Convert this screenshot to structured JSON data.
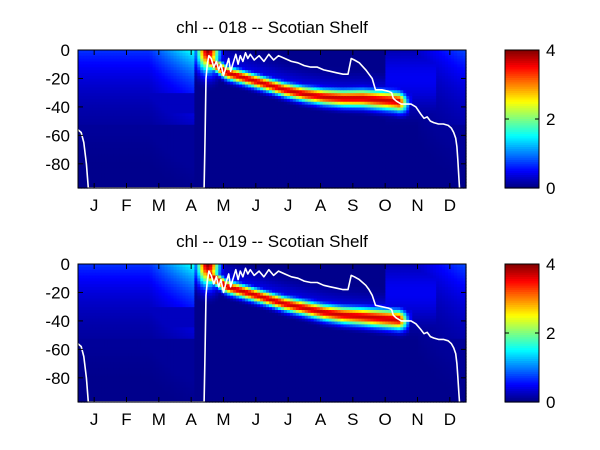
{
  "chart_data": [
    {
      "type": "heatmap",
      "title": "chl -- 018 -- Scotian Shelf",
      "xlabel": "",
      "ylabel": "",
      "xlim": [
        0,
        12
      ],
      "ylim": [
        -97,
        0
      ],
      "month_labels": [
        "J",
        "F",
        "M",
        "A",
        "M",
        "J",
        "J",
        "A",
        "S",
        "O",
        "N",
        "D"
      ],
      "y_ticks": [
        0,
        -20,
        -40,
        -60,
        -80
      ],
      "y_tick_labels": [
        "0",
        "-20",
        "-40",
        "-60",
        "-80"
      ],
      "colorbar": {
        "range": [
          0,
          4
        ],
        "ticks": [
          0,
          2,
          4
        ],
        "tick_labels": [
          "0",
          "2",
          "4"
        ],
        "colormap": "jet"
      },
      "subsurface_max": [
        [
          3.6,
          3
        ],
        [
          4.1,
          -8
        ],
        [
          4.6,
          -16
        ],
        [
          5.2,
          -20
        ],
        [
          5.8,
          -24
        ],
        [
          6.4,
          -28
        ],
        [
          7.0,
          -31
        ],
        [
          7.6,
          -33
        ],
        [
          8.2,
          -34
        ],
        [
          8.8,
          -34
        ],
        [
          9.3,
          -35
        ],
        [
          9.8,
          -36
        ],
        [
          10.3,
          -38
        ]
      ],
      "mixed_layer_depth": [
        [
          0.0,
          -56
        ],
        [
          0.1,
          -58
        ],
        [
          0.18,
          -65
        ],
        [
          0.26,
          -80
        ],
        [
          0.32,
          -97
        ],
        [
          3.9,
          -97
        ],
        [
          3.93,
          -60
        ],
        [
          3.96,
          -20
        ],
        [
          4.0,
          -10
        ],
        [
          4.05,
          -4
        ],
        [
          4.12,
          -6
        ],
        [
          4.2,
          -12
        ],
        [
          4.28,
          -8
        ],
        [
          4.35,
          -14
        ],
        [
          4.42,
          -10
        ],
        [
          4.5,
          -18
        ],
        [
          4.58,
          -12
        ],
        [
          4.66,
          -6
        ],
        [
          4.72,
          -15
        ],
        [
          4.8,
          -9
        ],
        [
          4.88,
          -3
        ],
        [
          4.95,
          -10
        ],
        [
          5.02,
          -4
        ],
        [
          5.1,
          -8
        ],
        [
          5.18,
          -2
        ],
        [
          5.25,
          -6
        ],
        [
          5.33,
          -3
        ],
        [
          5.45,
          -7
        ],
        [
          5.6,
          -4
        ],
        [
          5.75,
          -8
        ],
        [
          5.9,
          -3
        ],
        [
          6.05,
          -7
        ],
        [
          6.2,
          -4
        ],
        [
          6.4,
          -6
        ],
        [
          6.6,
          -8
        ],
        [
          6.8,
          -9
        ],
        [
          7.0,
          -11
        ],
        [
          7.2,
          -12
        ],
        [
          7.4,
          -12
        ],
        [
          7.6,
          -14
        ],
        [
          7.8,
          -15
        ],
        [
          8.0,
          -16
        ],
        [
          8.2,
          -17
        ],
        [
          8.35,
          -17
        ],
        [
          8.45,
          -6
        ],
        [
          8.55,
          -7
        ],
        [
          8.7,
          -9
        ],
        [
          8.9,
          -14
        ],
        [
          9.0,
          -17
        ],
        [
          9.1,
          -20
        ],
        [
          9.2,
          -28
        ],
        [
          9.4,
          -28
        ],
        [
          9.6,
          -29
        ],
        [
          9.7,
          -30
        ],
        [
          9.75,
          -34
        ],
        [
          9.85,
          -36
        ],
        [
          10.0,
          -38
        ],
        [
          10.3,
          -38
        ],
        [
          10.45,
          -40
        ],
        [
          10.6,
          -45
        ],
        [
          10.7,
          -48
        ],
        [
          10.8,
          -47
        ],
        [
          10.9,
          -50
        ],
        [
          11.0,
          -51
        ],
        [
          11.15,
          -52
        ],
        [
          11.3,
          -52
        ],
        [
          11.45,
          -53
        ],
        [
          11.55,
          -55
        ],
        [
          11.62,
          -58
        ],
        [
          11.68,
          -62
        ],
        [
          11.72,
          -68
        ],
        [
          11.75,
          -78
        ],
        [
          11.78,
          -90
        ],
        [
          11.8,
          -97
        ]
      ]
    },
    {
      "type": "heatmap",
      "title": "chl -- 019 -- Scotian Shelf",
      "xlabel": "",
      "ylabel": "",
      "xlim": [
        0,
        12
      ],
      "ylim": [
        -97,
        0
      ],
      "month_labels": [
        "J",
        "F",
        "M",
        "A",
        "M",
        "J",
        "J",
        "A",
        "S",
        "O",
        "N",
        "D"
      ],
      "y_ticks": [
        0,
        -20,
        -40,
        -60,
        -80
      ],
      "y_tick_labels": [
        "0",
        "-20",
        "-40",
        "-60",
        "-80"
      ],
      "colorbar": {
        "range": [
          0,
          4
        ],
        "ticks": [
          0,
          2,
          4
        ],
        "tick_labels": [
          "0",
          "2",
          "4"
        ],
        "colormap": "jet"
      },
      "subsurface_max": [
        [
          3.6,
          3
        ],
        [
          4.1,
          -8
        ],
        [
          4.6,
          -16
        ],
        [
          5.2,
          -20
        ],
        [
          5.8,
          -24
        ],
        [
          6.4,
          -28
        ],
        [
          7.0,
          -31
        ],
        [
          7.6,
          -34
        ],
        [
          8.2,
          -36
        ],
        [
          8.8,
          -37
        ],
        [
          9.3,
          -38
        ],
        [
          9.8,
          -39
        ],
        [
          10.3,
          -40
        ]
      ],
      "mixed_layer_depth": [
        [
          0.0,
          -56
        ],
        [
          0.1,
          -58
        ],
        [
          0.18,
          -65
        ],
        [
          0.26,
          -80
        ],
        [
          0.32,
          -97
        ],
        [
          3.9,
          -97
        ],
        [
          3.93,
          -60
        ],
        [
          3.96,
          -22
        ],
        [
          4.0,
          -12
        ],
        [
          4.05,
          -5
        ],
        [
          4.12,
          -8
        ],
        [
          4.2,
          -14
        ],
        [
          4.28,
          -9
        ],
        [
          4.35,
          -16
        ],
        [
          4.42,
          -11
        ],
        [
          4.5,
          -20
        ],
        [
          4.58,
          -13
        ],
        [
          4.66,
          -7
        ],
        [
          4.72,
          -16
        ],
        [
          4.8,
          -10
        ],
        [
          4.88,
          -4
        ],
        [
          4.95,
          -11
        ],
        [
          5.02,
          -5
        ],
        [
          5.1,
          -9
        ],
        [
          5.18,
          -3
        ],
        [
          5.25,
          -7
        ],
        [
          5.33,
          -4
        ],
        [
          5.45,
          -8
        ],
        [
          5.6,
          -5
        ],
        [
          5.75,
          -9
        ],
        [
          5.9,
          -4
        ],
        [
          6.05,
          -8
        ],
        [
          6.2,
          -5
        ],
        [
          6.4,
          -7
        ],
        [
          6.6,
          -9
        ],
        [
          6.8,
          -10
        ],
        [
          7.0,
          -12
        ],
        [
          7.2,
          -13
        ],
        [
          7.4,
          -13
        ],
        [
          7.6,
          -15
        ],
        [
          7.8,
          -16
        ],
        [
          8.0,
          -17
        ],
        [
          8.2,
          -18
        ],
        [
          8.35,
          -18
        ],
        [
          8.45,
          -8
        ],
        [
          8.55,
          -9
        ],
        [
          8.7,
          -11
        ],
        [
          8.9,
          -15
        ],
        [
          9.0,
          -18
        ],
        [
          9.1,
          -22
        ],
        [
          9.2,
          -29
        ],
        [
          9.4,
          -30
        ],
        [
          9.6,
          -31
        ],
        [
          9.7,
          -32
        ],
        [
          9.75,
          -36
        ],
        [
          9.85,
          -38
        ],
        [
          10.0,
          -40
        ],
        [
          10.3,
          -40
        ],
        [
          10.45,
          -42
        ],
        [
          10.6,
          -46
        ],
        [
          10.7,
          -49
        ],
        [
          10.8,
          -48
        ],
        [
          10.9,
          -51
        ],
        [
          11.0,
          -52
        ],
        [
          11.15,
          -53
        ],
        [
          11.3,
          -53
        ],
        [
          11.45,
          -54
        ],
        [
          11.55,
          -56
        ],
        [
          11.62,
          -59
        ],
        [
          11.68,
          -63
        ],
        [
          11.72,
          -70
        ],
        [
          11.75,
          -80
        ],
        [
          11.78,
          -91
        ],
        [
          11.8,
          -97
        ]
      ]
    }
  ]
}
